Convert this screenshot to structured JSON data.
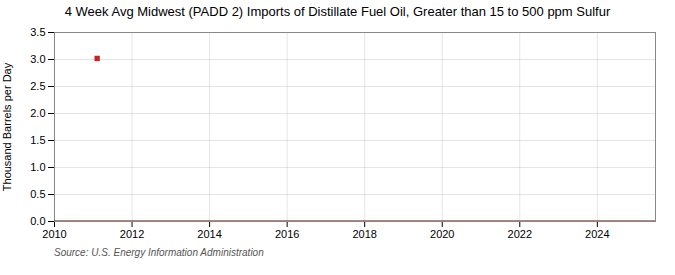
{
  "chart_data": {
    "type": "line",
    "title": "4 Week Avg Midwest (PADD 2) Imports of Distillate Fuel Oil, Greater than 15 to 500 ppm Sulfur",
    "ylabel": "Thousand Barrels per Day",
    "source": "Source: U.S. Energy Information Administration",
    "xlim": [
      2010,
      2025.5
    ],
    "ylim": [
      0.0,
      3.5
    ],
    "xticks": [
      2010,
      2012,
      2014,
      2016,
      2018,
      2020,
      2022,
      2024
    ],
    "yticks": [
      {
        "value": 0.0,
        "label": "0.0"
      },
      0.5,
      {
        "value": 1.0,
        "label": "1.0"
      },
      1.5,
      {
        "value": 2.0,
        "label": "2.0"
      },
      2.5,
      {
        "value": 3.0,
        "label": "3.0"
      },
      3.5
    ],
    "grid": true,
    "series": [
      {
        "type": "line",
        "color": "#7a0000",
        "x": [
          2010.0,
          2011.0,
          2011.5,
          2012.0,
          2013.0,
          2014.0,
          2015.0,
          2016.0,
          2017.0,
          2018.0,
          2019.0,
          2020.0,
          2021.0,
          2022.0,
          2023.0,
          2024.0,
          2025.5
        ],
        "values": [
          0.0,
          0.0,
          0.0,
          0.0,
          0.0,
          0.0,
          0.0,
          0.0,
          0.0,
          0.0,
          0.0,
          0.0,
          0.0,
          0.0,
          0.0,
          0.0,
          0.0
        ]
      },
      {
        "type": "scatter",
        "color": "#cc2222",
        "marker": "square",
        "x": [
          2011.1
        ],
        "values": [
          3.02
        ]
      }
    ]
  }
}
